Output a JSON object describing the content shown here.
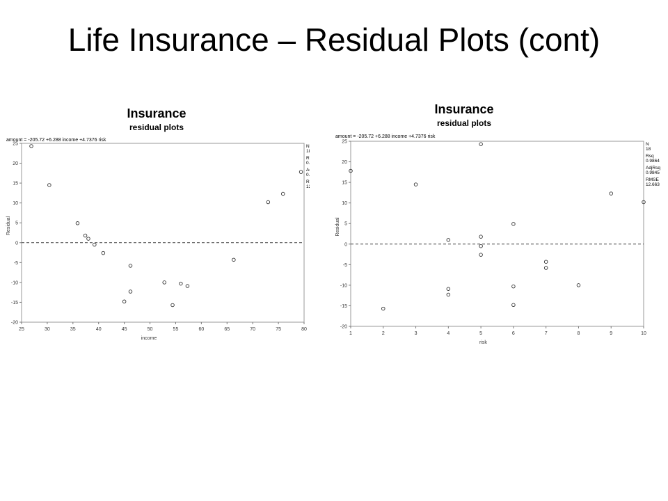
{
  "slide": {
    "title": "Life Insurance – Residual Plots (cont)"
  },
  "chart_data": [
    {
      "type": "scatter",
      "title": "Insurance",
      "subtitle": "residual plots",
      "equation": "amount = -205.72 +6.288 income +4.7376 risk",
      "xlabel": "income",
      "ylabel": "Residual",
      "xlim": [
        25,
        80
      ],
      "ylim": [
        -20,
        25
      ],
      "xticks": [
        25,
        30,
        35,
        40,
        45,
        50,
        55,
        60,
        65,
        70,
        75,
        80
      ],
      "yticks": [
        25,
        20,
        15,
        10,
        5,
        0,
        -5,
        -10,
        -15,
        -20
      ],
      "reference_line_y": 0,
      "stats": [
        {
          "label": "N",
          "value": "18"
        },
        {
          "label": "Rsq",
          "value": "0.9864"
        },
        {
          "label": "AdjRsq",
          "value": "0.9845"
        },
        {
          "label": "RMSE",
          "value": "12.663"
        }
      ],
      "points": [
        {
          "x": 26.9,
          "y": 24.3
        },
        {
          "x": 30.4,
          "y": 14.5
        },
        {
          "x": 35.9,
          "y": 4.9
        },
        {
          "x": 37.4,
          "y": 1.8
        },
        {
          "x": 38.0,
          "y": 1.0
        },
        {
          "x": 39.2,
          "y": -0.5
        },
        {
          "x": 40.9,
          "y": -2.6
        },
        {
          "x": 45.0,
          "y": -14.8
        },
        {
          "x": 46.2,
          "y": -5.8
        },
        {
          "x": 46.2,
          "y": -12.3
        },
        {
          "x": 52.8,
          "y": -10.0
        },
        {
          "x": 54.4,
          "y": -15.7
        },
        {
          "x": 56.0,
          "y": -10.3
        },
        {
          "x": 57.3,
          "y": -10.9
        },
        {
          "x": 66.3,
          "y": -4.3
        },
        {
          "x": 73.0,
          "y": 10.2
        },
        {
          "x": 75.9,
          "y": 12.3
        },
        {
          "x": 79.4,
          "y": 17.8
        }
      ]
    },
    {
      "type": "scatter",
      "title": "Insurance",
      "subtitle": "residual plots",
      "equation": "amount = -205.72 +6.288 income +4.7376 risk",
      "xlabel": "risk",
      "ylabel": "Residual",
      "xlim": [
        1,
        10
      ],
      "ylim": [
        -20,
        25
      ],
      "xticks": [
        1,
        2,
        3,
        4,
        5,
        6,
        7,
        8,
        9,
        10
      ],
      "yticks": [
        25,
        20,
        15,
        10,
        5,
        0,
        -5,
        -10,
        -15,
        -20
      ],
      "reference_line_y": 0,
      "stats": [
        {
          "label": "N",
          "value": "18"
        },
        {
          "label": "Rsq",
          "value": "0.9864"
        },
        {
          "label": "AdjRsq",
          "value": "0.9845"
        },
        {
          "label": "RMSE",
          "value": "12.663"
        }
      ],
      "points": [
        {
          "x": 1,
          "y": 17.8
        },
        {
          "x": 2,
          "y": -15.7
        },
        {
          "x": 3,
          "y": 14.5
        },
        {
          "x": 4,
          "y": 1.0
        },
        {
          "x": 4,
          "y": -10.9
        },
        {
          "x": 4,
          "y": -12.3
        },
        {
          "x": 5,
          "y": 24.3
        },
        {
          "x": 5,
          "y": 1.8
        },
        {
          "x": 5,
          "y": -0.5
        },
        {
          "x": 5,
          "y": -2.6
        },
        {
          "x": 6,
          "y": 4.9
        },
        {
          "x": 6,
          "y": -10.3
        },
        {
          "x": 6,
          "y": -14.8
        },
        {
          "x": 7,
          "y": -4.3
        },
        {
          "x": 7,
          "y": -5.8
        },
        {
          "x": 8,
          "y": -10.0
        },
        {
          "x": 9,
          "y": 12.3
        },
        {
          "x": 10,
          "y": 10.2
        }
      ]
    }
  ]
}
